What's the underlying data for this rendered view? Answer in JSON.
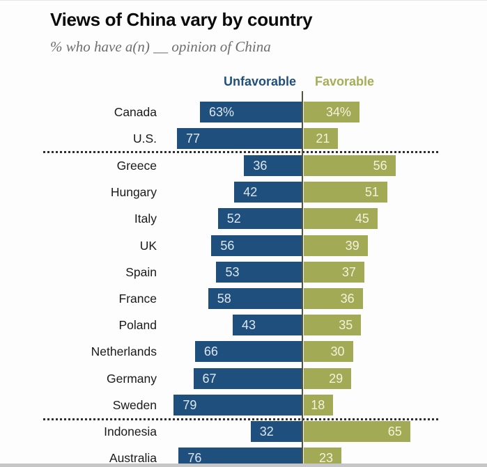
{
  "header": {
    "title": "Views of China vary by country",
    "subtitle": "% who have a(n) __ opinion of China"
  },
  "chart_data": {
    "type": "bar",
    "variant": "diverging-horizontal",
    "title": "Views of China vary by country",
    "subtitle": "% who have a(n) __ opinion of China",
    "unit": "percent",
    "value_range": [
      0,
      100
    ],
    "legend": {
      "unfavorable": "Unfavorable",
      "favorable": "Favorable",
      "position": "top"
    },
    "colors": {
      "unfavorable": "#1F4F7C",
      "favorable": "#A2AA55",
      "axis_line": "#53533B"
    },
    "groups": [
      [
        {
          "country": "Canada",
          "unfavorable": 63,
          "favorable": 34,
          "unfavorable_label": "63%",
          "favorable_label": "34%"
        },
        {
          "country": "U.S.",
          "unfavorable": 77,
          "favorable": 21,
          "unfavorable_label": "77",
          "favorable_label": "21"
        }
      ],
      [
        {
          "country": "Greece",
          "unfavorable": 36,
          "favorable": 56,
          "unfavorable_label": "36",
          "favorable_label": "56"
        },
        {
          "country": "Hungary",
          "unfavorable": 42,
          "favorable": 51,
          "unfavorable_label": "42",
          "favorable_label": "51"
        },
        {
          "country": "Italy",
          "unfavorable": 52,
          "favorable": 45,
          "unfavorable_label": "52",
          "favorable_label": "45"
        },
        {
          "country": "UK",
          "unfavorable": 56,
          "favorable": 39,
          "unfavorable_label": "56",
          "favorable_label": "39"
        },
        {
          "country": "Spain",
          "unfavorable": 53,
          "favorable": 37,
          "unfavorable_label": "53",
          "favorable_label": "37"
        },
        {
          "country": "France",
          "unfavorable": 58,
          "favorable": 36,
          "unfavorable_label": "58",
          "favorable_label": "36"
        },
        {
          "country": "Poland",
          "unfavorable": 43,
          "favorable": 35,
          "unfavorable_label": "43",
          "favorable_label": "35"
        },
        {
          "country": "Netherlands",
          "unfavorable": 66,
          "favorable": 30,
          "unfavorable_label": "66",
          "favorable_label": "30"
        },
        {
          "country": "Germany",
          "unfavorable": 67,
          "favorable": 29,
          "unfavorable_label": "67",
          "favorable_label": "29"
        },
        {
          "country": "Sweden",
          "unfavorable": 79,
          "favorable": 18,
          "unfavorable_label": "79",
          "favorable_label": "18"
        }
      ],
      [
        {
          "country": "Indonesia",
          "unfavorable": 32,
          "favorable": 65,
          "unfavorable_label": "32",
          "favorable_label": "65"
        },
        {
          "country": "Australia",
          "unfavorable": 76,
          "favorable": 23,
          "unfavorable_label": "76",
          "favorable_label": "23"
        }
      ]
    ]
  }
}
